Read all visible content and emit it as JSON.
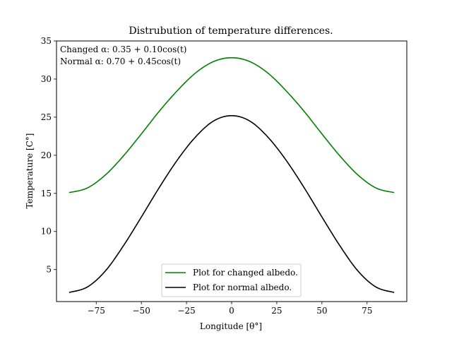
{
  "chart_data": {
    "type": "line",
    "title": "Distrubution of temperature differences.",
    "xlabel": "Longitude [θ°]",
    "ylabel": "Temperature [C°]",
    "xlim": [
      -97,
      97
    ],
    "ylim": [
      0.8,
      35
    ],
    "x_ticks": [
      -75,
      -50,
      -25,
      0,
      25,
      50,
      75
    ],
    "x_tick_labels": [
      "−75",
      "−50",
      "−25",
      "0",
      "25",
      "50",
      "75"
    ],
    "y_ticks": [
      5,
      10,
      15,
      20,
      25,
      30,
      35
    ],
    "y_tick_labels": [
      "5",
      "10",
      "15",
      "20",
      "25",
      "30",
      "35"
    ],
    "grid": false,
    "legend_position": "bottom-center",
    "annotations": [
      "Changed α: 0.35 + 0.10cos(t)",
      "Normal α: 0.70 + 0.45cos(t)"
    ],
    "series": [
      {
        "name": "Plot for changed albedo.",
        "color": "#008000",
        "x": [
          -90,
          -80,
          -70,
          -60,
          -50,
          -40,
          -30,
          -20,
          -10,
          0,
          10,
          20,
          30,
          40,
          50,
          60,
          70,
          80,
          90
        ],
        "y": [
          15.1,
          15.7,
          17.4,
          19.9,
          22.8,
          25.8,
          28.5,
          30.8,
          32.3,
          32.8,
          32.3,
          30.8,
          28.5,
          25.8,
          22.8,
          19.9,
          17.4,
          15.7,
          15.1
        ]
      },
      {
        "name": "Plot for normal albedo.",
        "color": "#000000",
        "x": [
          -90,
          -80,
          -70,
          -60,
          -50,
          -40,
          -30,
          -20,
          -10,
          0,
          10,
          20,
          30,
          40,
          50,
          60,
          70,
          80,
          90
        ],
        "y": [
          2.0,
          2.7,
          4.8,
          8.1,
          11.9,
          15.8,
          19.4,
          22.4,
          24.5,
          25.2,
          24.5,
          22.4,
          19.4,
          15.8,
          11.9,
          8.1,
          4.8,
          2.7,
          2.0
        ]
      }
    ]
  }
}
